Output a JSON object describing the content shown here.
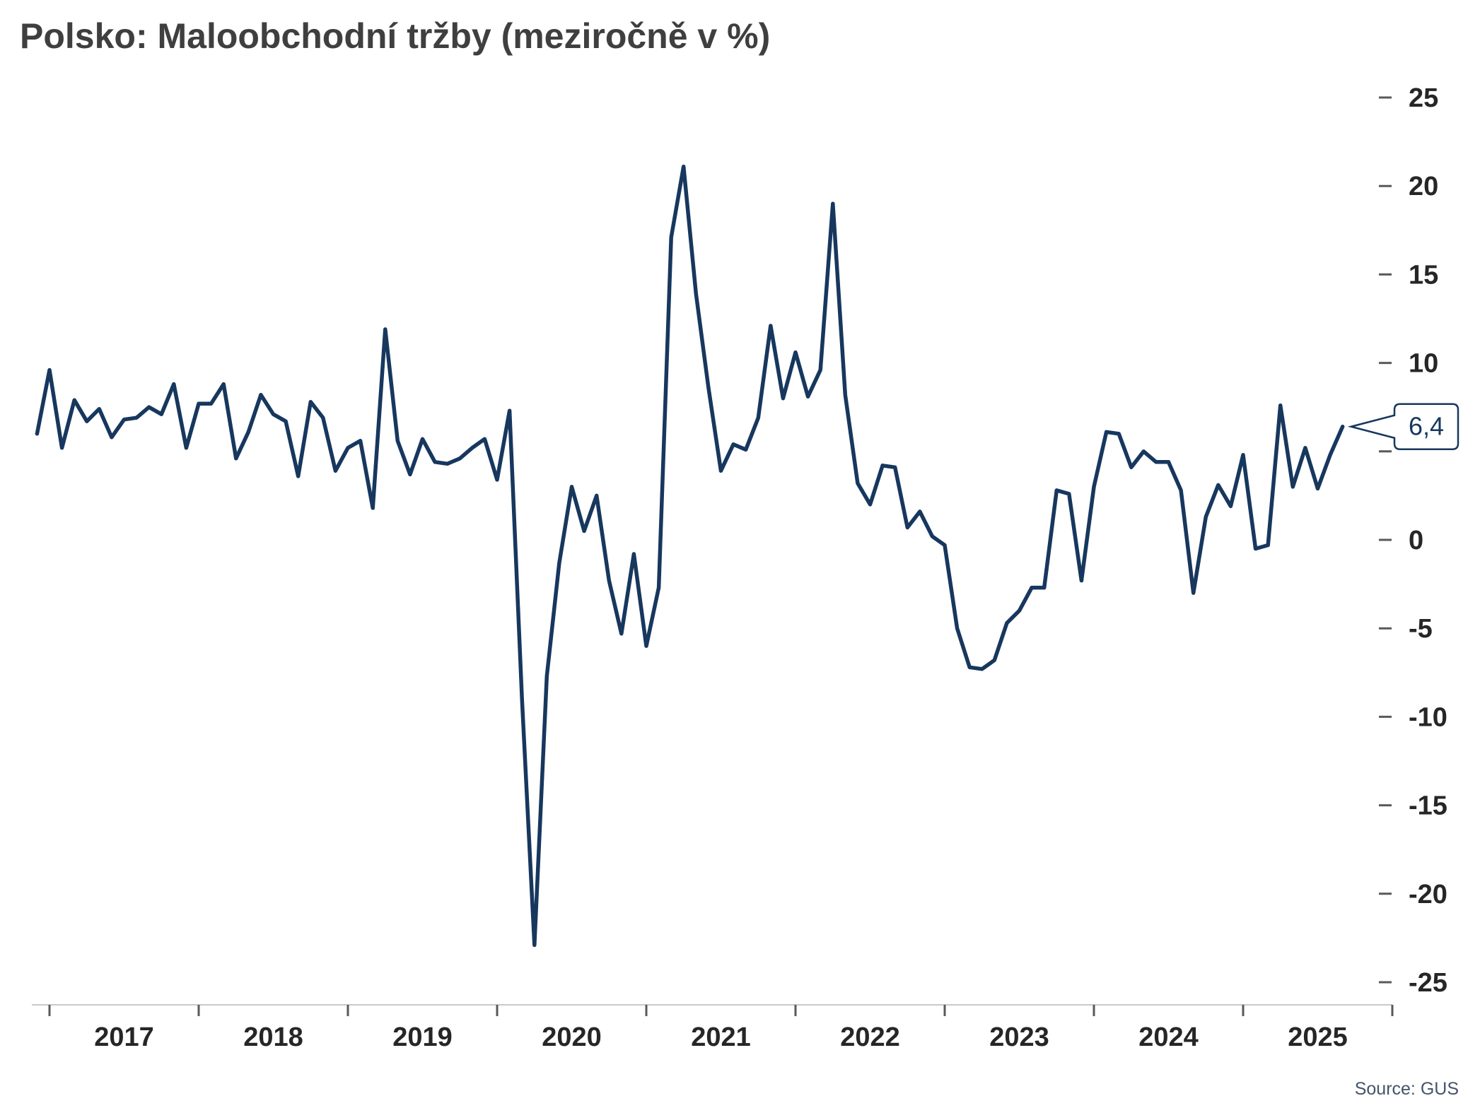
{
  "title": "Polsko: Maloobchodní tržby (meziročně v %)",
  "source": "Source: GUS",
  "colors": {
    "line": "#17375E",
    "title_text": "#3F3F3F",
    "axis_text": "#262626",
    "axis_line": "#C9C9C9",
    "tick": "#595959",
    "source_text": "#44546A",
    "background": "#FFFFFF"
  },
  "chart_data": {
    "type": "line",
    "title": "Polsko: Maloobchodní tržby (meziročně v %)",
    "xlabel": "",
    "ylabel": "",
    "ylim": [
      -25,
      25
    ],
    "grid": false,
    "legend": false,
    "y_axis_side": "right",
    "line_color": "#17375E",
    "last_value_label": "6,4",
    "x_tick_labels": [
      "2017",
      "2018",
      "2019",
      "2020",
      "2021",
      "2022",
      "2023",
      "2024",
      "2025"
    ],
    "y_ticks": [
      {
        "value": 25,
        "label": "25"
      },
      {
        "value": 20,
        "label": "20"
      },
      {
        "value": 15,
        "label": "15"
      },
      {
        "value": 10,
        "label": "10"
      },
      {
        "value": 5,
        "label": ""
      },
      {
        "value": 0,
        "label": "0"
      },
      {
        "value": -5,
        "label": "-5"
      },
      {
        "value": -10,
        "label": "-10"
      },
      {
        "value": -15,
        "label": "-15"
      },
      {
        "value": -20,
        "label": "-20"
      },
      {
        "value": -25,
        "label": "-25"
      }
    ],
    "series": [
      {
        "name": "Maloobchodní tržby meziročně (%)",
        "months": [
          "2016-12",
          "2017-01",
          "2017-02",
          "2017-03",
          "2017-04",
          "2017-05",
          "2017-06",
          "2017-07",
          "2017-08",
          "2017-09",
          "2017-10",
          "2017-11",
          "2017-12",
          "2018-01",
          "2018-02",
          "2018-03",
          "2018-04",
          "2018-05",
          "2018-06",
          "2018-07",
          "2018-08",
          "2018-09",
          "2018-10",
          "2018-11",
          "2018-12",
          "2019-01",
          "2019-02",
          "2019-03",
          "2019-04",
          "2019-05",
          "2019-06",
          "2019-07",
          "2019-08",
          "2019-09",
          "2019-10",
          "2019-11",
          "2019-12",
          "2020-01",
          "2020-02",
          "2020-03",
          "2020-04",
          "2020-05",
          "2020-06",
          "2020-07",
          "2020-08",
          "2020-09",
          "2020-10",
          "2020-11",
          "2020-12",
          "2021-01",
          "2021-02",
          "2021-03",
          "2021-04",
          "2021-05",
          "2021-06",
          "2021-07",
          "2021-08",
          "2021-09",
          "2021-10",
          "2021-11",
          "2021-12",
          "2022-01",
          "2022-02",
          "2022-03",
          "2022-04",
          "2022-05",
          "2022-06",
          "2022-07",
          "2022-08",
          "2022-09",
          "2022-10",
          "2022-11",
          "2022-12",
          "2023-01",
          "2023-02",
          "2023-03",
          "2023-04",
          "2023-05",
          "2023-06",
          "2023-07",
          "2023-08",
          "2023-09",
          "2023-10",
          "2023-11",
          "2023-12",
          "2024-01",
          "2024-02",
          "2024-03",
          "2024-04",
          "2024-05",
          "2024-06",
          "2024-07",
          "2024-08",
          "2024-09",
          "2024-10",
          "2024-11",
          "2024-12",
          "2025-01",
          "2025-02",
          "2025-03",
          "2025-04",
          "2025-05",
          "2025-06",
          "2025-07",
          "2025-08",
          "2025-09"
        ],
        "values": [
          6.0,
          9.6,
          5.2,
          7.9,
          6.7,
          7.4,
          5.8,
          6.8,
          6.9,
          7.5,
          7.1,
          8.8,
          5.2,
          7.7,
          7.7,
          8.8,
          4.6,
          6.1,
          8.2,
          7.1,
          6.7,
          3.6,
          7.8,
          6.9,
          3.9,
          5.2,
          5.6,
          1.8,
          11.9,
          5.6,
          3.7,
          5.7,
          4.4,
          4.3,
          4.6,
          5.2,
          5.7,
          3.4,
          7.3,
          -9.0,
          -22.9,
          -7.7,
          -1.3,
          3.0,
          0.5,
          2.5,
          -2.3,
          -5.3,
          -0.8,
          -6.0,
          -2.7,
          17.1,
          21.1,
          13.9,
          8.6,
          3.9,
          5.4,
          5.1,
          6.9,
          12.1,
          8.0,
          10.6,
          8.1,
          9.6,
          19.0,
          8.2,
          3.2,
          2.0,
          4.2,
          4.1,
          0.7,
          1.6,
          0.2,
          -0.3,
          -5.0,
          -7.2,
          -7.3,
          -6.8,
          -4.7,
          -4.0,
          -2.7,
          -2.7,
          2.8,
          2.6,
          -2.3,
          3.0,
          6.1,
          6.0,
          4.1,
          5.0,
          4.4,
          4.4,
          2.8,
          -3.0,
          1.3,
          3.1,
          1.9,
          4.8,
          -0.5,
          -0.3,
          7.6,
          3.0,
          5.2,
          2.9,
          4.8,
          6.4
        ]
      }
    ]
  }
}
